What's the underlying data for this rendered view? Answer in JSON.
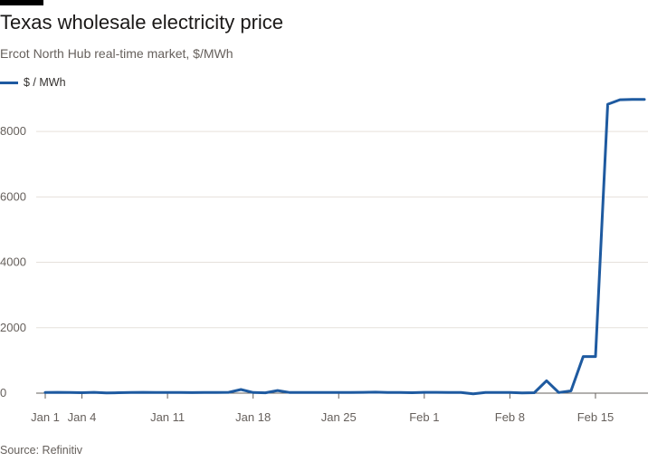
{
  "header": {
    "title": "Texas wholesale electricity price",
    "subtitle": "Ercot North Hub real-time market, $/MWh"
  },
  "footer": {
    "source": "Source: Refinitiv"
  },
  "colors": {
    "series": "#1e5aa0",
    "grid": "#e6e1db",
    "axis": "#66605c"
  },
  "chart_data": {
    "type": "line",
    "title": "Texas wholesale electricity price",
    "subtitle": "Ercot North Hub real-time market, $/MWh",
    "xlabel": "",
    "ylabel": "",
    "legend": "top-left",
    "grid": true,
    "ylim": [
      0,
      9000
    ],
    "yticks": [
      0,
      2000,
      4000,
      6000,
      8000
    ],
    "xlim": [
      "Jan 1",
      "Feb 19"
    ],
    "xticks": [
      {
        "date": "Jan 1",
        "label": "Jan 1"
      },
      {
        "date": "Jan 4",
        "label": "Jan 4"
      },
      {
        "date": "Jan 11",
        "label": "Jan 11"
      },
      {
        "date": "Jan 18",
        "label": "Jan 18"
      },
      {
        "date": "Jan 25",
        "label": "Jan 25"
      },
      {
        "date": "Feb 1",
        "label": "Feb 1"
      },
      {
        "date": "Feb 8",
        "label": "Feb 8"
      },
      {
        "date": "Feb 15",
        "label": "Feb 15"
      }
    ],
    "series": [
      {
        "name": "$ / MWh",
        "color": "#1e5aa0",
        "x": [
          "Jan 1",
          "Jan 2",
          "Jan 3",
          "Jan 4",
          "Jan 5",
          "Jan 6",
          "Jan 7",
          "Jan 8",
          "Jan 9",
          "Jan 10",
          "Jan 11",
          "Jan 12",
          "Jan 13",
          "Jan 14",
          "Jan 15",
          "Jan 16",
          "Jan 17",
          "Jan 18",
          "Jan 19",
          "Jan 20",
          "Jan 21",
          "Jan 22",
          "Jan 23",
          "Jan 24",
          "Jan 25",
          "Jan 26",
          "Jan 27",
          "Jan 28",
          "Jan 29",
          "Jan 30",
          "Jan 31",
          "Feb 1",
          "Feb 2",
          "Feb 3",
          "Feb 4",
          "Feb 5",
          "Feb 6",
          "Feb 7",
          "Feb 8",
          "Feb 9",
          "Feb 10",
          "Feb 11",
          "Feb 12",
          "Feb 13",
          "Feb 14",
          "Feb 15",
          "Feb 16",
          "Feb 17",
          "Feb 18",
          "Feb 19"
        ],
        "y": [
          20,
          25,
          22,
          15,
          25,
          5,
          15,
          20,
          25,
          20,
          20,
          20,
          18,
          20,
          20,
          25,
          110,
          20,
          10,
          80,
          20,
          20,
          20,
          20,
          20,
          20,
          25,
          30,
          20,
          20,
          15,
          25,
          25,
          20,
          20,
          -20,
          20,
          20,
          20,
          5,
          15,
          380,
          20,
          70,
          1120,
          1120,
          8830,
          8970,
          8980,
          8980
        ]
      }
    ]
  }
}
